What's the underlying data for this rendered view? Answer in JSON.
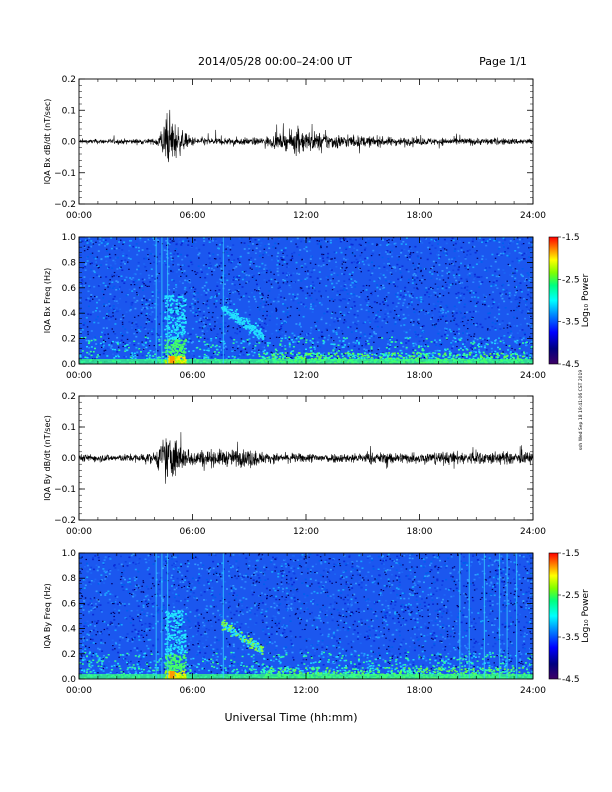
{
  "header": {
    "title": "2014/05/28  00:00–24:00 UT",
    "page": "Page 1/1"
  },
  "x_axis_title": "Universal Time (hh:mm)",
  "side_stamp": "ssh Wed Sep 18 19:41:06 CST 2019",
  "chart_data": [
    {
      "type": "line",
      "panel": "bx-dbdt",
      "ylabel": "IQA Bx dB/dt (nT/sec)",
      "x_range_hours": [
        0,
        24
      ],
      "ylim": [
        -0.2,
        0.2
      ],
      "x_tick_labels": [
        "00:00",
        "06:00",
        "12:00",
        "18:00",
        "24:00"
      ],
      "y_tick_labels": [
        "0.2",
        "0.1",
        "0.0",
        "−0.1",
        "−0.2"
      ],
      "y_ticks": [
        0.2,
        0.1,
        0.0,
        -0.1,
        -0.2
      ],
      "activity_envelope": {
        "t_hours": [
          0,
          4.0,
          4.3,
          4.6,
          4.9,
          5.2,
          5.5,
          6.0,
          7.0,
          9.5,
          10.0,
          11.0,
          11.5,
          12.0,
          13.0,
          14.0,
          16.0,
          18.0,
          20.0,
          22.0,
          24.0
        ],
        "amplitude": [
          0.012,
          0.015,
          0.06,
          0.12,
          0.13,
          0.09,
          0.05,
          0.025,
          0.02,
          0.02,
          0.03,
          0.045,
          0.07,
          0.06,
          0.045,
          0.035,
          0.025,
          0.02,
          0.02,
          0.018,
          0.016
        ]
      }
    },
    {
      "type": "heatmap",
      "panel": "bx-spectrogram",
      "ylabel": "IQA Bx Freq (Hz)",
      "x_range_hours": [
        0,
        24
      ],
      "ylim": [
        0.0,
        1.0
      ],
      "x_tick_labels": [
        "00:00",
        "06:00",
        "12:00",
        "18:00",
        "24:00"
      ],
      "y_tick_labels": [
        "1.0",
        "0.8",
        "0.6",
        "0.4",
        "0.2",
        "0.0"
      ],
      "y_ticks": [
        1.0,
        0.8,
        0.6,
        0.4,
        0.2,
        0.0
      ],
      "colorbar": {
        "label": "Log₁₀ Power",
        "range": [
          -4.5,
          -1.5
        ],
        "tick_labels": [
          "-1.5",
          "-2.5",
          "-3.5",
          "-4.5"
        ],
        "ticks": [
          -1.5,
          -2.5,
          -3.5,
          -4.5
        ]
      }
    },
    {
      "type": "line",
      "panel": "by-dbdt",
      "ylabel": "IQA By dB/dt (nT/sec)",
      "x_range_hours": [
        0,
        24
      ],
      "ylim": [
        -0.2,
        0.2
      ],
      "x_tick_labels": [
        "00:00",
        "06:00",
        "12:00",
        "18:00",
        "24:00"
      ],
      "y_tick_labels": [
        "0.2",
        "0.1",
        "0.0",
        "−0.1",
        "−0.2"
      ],
      "y_ticks": [
        0.2,
        0.1,
        0.0,
        -0.1,
        -0.2
      ],
      "activity_envelope": {
        "t_hours": [
          0,
          2.5,
          4.0,
          4.3,
          4.6,
          4.9,
          5.2,
          5.5,
          6.0,
          7.0,
          8.0,
          9.0,
          9.5,
          10.0,
          12.0,
          14.0,
          16.0,
          18.0,
          20.0,
          22.0,
          24.0
        ],
        "amplitude": [
          0.02,
          0.02,
          0.03,
          0.08,
          0.12,
          0.13,
          0.1,
          0.06,
          0.045,
          0.045,
          0.045,
          0.05,
          0.04,
          0.025,
          0.025,
          0.025,
          0.03,
          0.03,
          0.035,
          0.035,
          0.03
        ]
      }
    },
    {
      "type": "heatmap",
      "panel": "by-spectrogram",
      "ylabel": "IQA By Freq (Hz)",
      "x_range_hours": [
        0,
        24
      ],
      "ylim": [
        0.0,
        1.0
      ],
      "x_tick_labels": [
        "00:00",
        "06:00",
        "12:00",
        "18:00",
        "24:00"
      ],
      "y_tick_labels": [
        "1.0",
        "0.8",
        "0.6",
        "0.4",
        "0.2",
        "0.0"
      ],
      "y_ticks": [
        1.0,
        0.8,
        0.6,
        0.4,
        0.2,
        0.0
      ],
      "colorbar": {
        "label": "Log₁₀ Power",
        "range": [
          -4.5,
          -1.5
        ],
        "tick_labels": [
          "-1.5",
          "-2.5",
          "-3.5",
          "-4.5"
        ],
        "ticks": [
          -1.5,
          -2.5,
          -3.5,
          -4.5
        ]
      }
    }
  ]
}
